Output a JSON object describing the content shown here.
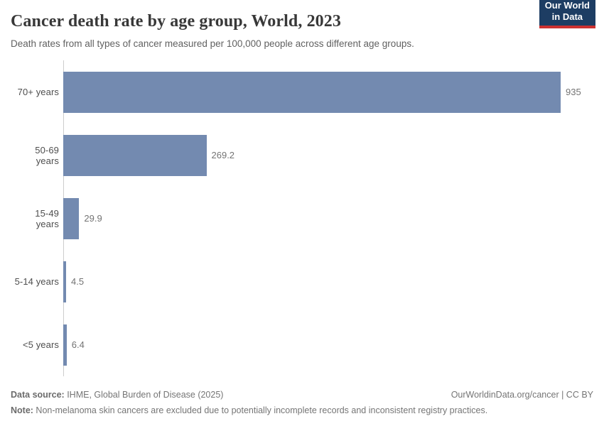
{
  "header": {
    "title": "Cancer death rate by age group, World, 2023",
    "subtitle": "Death rates from all types of cancer measured per 100,000 people across different age groups.",
    "logo_line1": "Our World",
    "logo_line2": "in Data"
  },
  "chart_data": {
    "type": "bar",
    "orientation": "horizontal",
    "title": "Cancer death rate by age group, World, 2023",
    "subtitle": "Death rates from all types of cancer measured per 100,000 people across different age groups.",
    "categories": [
      "70+ years",
      "50-69 years",
      "15-49 years",
      "5-14 years",
      "<5 years"
    ],
    "values": [
      935,
      269.2,
      29.9,
      4.5,
      6.4
    ],
    "value_labels": [
      "935",
      "269.2",
      "29.9",
      "4.5",
      "6.4"
    ],
    "xlabel": "",
    "ylabel": "",
    "xlim": [
      0,
      935
    ],
    "grid": false,
    "legend": false,
    "bar_color": "#738ab0",
    "axis_color": "#cdcdcd"
  },
  "footer": {
    "source_label": "Data source:",
    "source_text": " IHME, Global Burden of Disease (2025)",
    "attribution": "OurWorldinData.org/cancer | CC BY",
    "note_label": "Note:",
    "note_text": " Non-melanoma skin cancers are excluded due to potentially incomplete records and inconsistent registry practices."
  },
  "colors": {
    "bar": "#738ab0",
    "logo_background": "#1d3d63",
    "logo_accent": "#cc3130"
  }
}
